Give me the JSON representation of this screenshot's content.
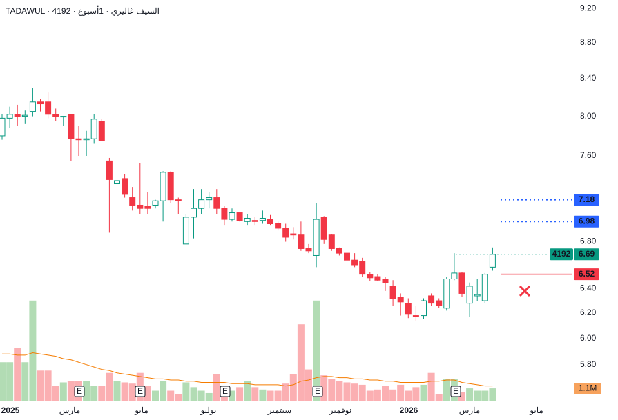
{
  "chart_data": {
    "type": "candlestick",
    "title": "TADAWUL · 4192 · السيف غاليري · 1أسبوع",
    "symbol": "4192",
    "x_labels": [
      "2025",
      "مارس",
      "مايو",
      "يوليو",
      "سبتمبر",
      "نوفمبر",
      "2026",
      "مارس",
      "مايو"
    ],
    "open": [
      7.8,
      7.98,
      8.02,
      8.0,
      8.05,
      8.15,
      8.15,
      8.02,
      8.0,
      8.02,
      7.77,
      7.76,
      7.77,
      7.95,
      7.55,
      7.33,
      7.38,
      7.2,
      7.13,
      7.12,
      7.13,
      7.17,
      7.44,
      7.18,
      6.78,
      7.02,
      7.1,
      7.18,
      7.2,
      7.1,
      7.0,
      7.06,
      6.98,
      6.99,
      6.99,
      7.0,
      6.96,
      6.92,
      6.87,
      6.86,
      6.74,
      6.68,
      7.02,
      6.86,
      6.74,
      6.7,
      6.64,
      6.63,
      6.52,
      6.5,
      6.48,
      6.42,
      6.33,
      6.28,
      6.18,
      6.18,
      6.34,
      6.3,
      6.24,
      6.48,
      6.53,
      6.28,
      6.34,
      6.3,
      6.58
    ],
    "high": [
      8.02,
      8.1,
      8.12,
      8.06,
      8.3,
      8.18,
      8.25,
      8.08,
      8.0,
      8.02,
      7.9,
      7.85,
      8.02,
      7.97,
      7.58,
      7.5,
      7.42,
      7.3,
      7.53,
      7.25,
      7.18,
      7.45,
      7.45,
      7.2,
      7.05,
      7.28,
      7.28,
      7.25,
      7.28,
      7.12,
      7.1,
      7.06,
      7.05,
      7.02,
      7.08,
      7.04,
      6.98,
      6.96,
      6.93,
      6.98,
      6.78,
      7.15,
      7.03,
      6.87,
      6.75,
      6.72,
      6.7,
      6.66,
      6.54,
      6.52,
      6.5,
      6.47,
      6.36,
      6.32,
      6.26,
      6.32,
      6.36,
      6.32,
      6.5,
      6.7,
      6.54,
      6.45,
      6.48,
      6.53,
      6.75
    ],
    "low": [
      7.76,
      7.88,
      7.9,
      7.92,
      8.0,
      8.05,
      7.98,
      7.95,
      7.9,
      7.55,
      7.6,
      7.6,
      7.72,
      7.75,
      6.88,
      7.3,
      7.2,
      7.08,
      7.05,
      7.05,
      7.1,
      6.98,
      7.15,
      7.05,
      6.78,
      6.83,
      7.05,
      7.1,
      7.05,
      6.95,
      6.98,
      6.98,
      6.95,
      6.95,
      6.96,
      6.95,
      6.9,
      6.8,
      6.82,
      6.72,
      6.7,
      6.58,
      6.78,
      6.72,
      6.68,
      6.6,
      6.58,
      6.5,
      6.46,
      6.46,
      6.38,
      6.26,
      6.18,
      6.16,
      6.14,
      6.15,
      6.26,
      6.24,
      6.22,
      6.47,
      6.33,
      6.17,
      6.3,
      6.28,
      6.55
    ],
    "close": [
      7.98,
      8.02,
      8.0,
      8.01,
      8.15,
      8.13,
      8.02,
      8.0,
      8.0,
      7.77,
      7.76,
      7.77,
      7.97,
      7.75,
      7.37,
      7.36,
      7.23,
      7.13,
      7.1,
      7.1,
      7.17,
      7.44,
      7.18,
      7.17,
      7.02,
      7.1,
      7.18,
      7.2,
      7.1,
      7.0,
      7.06,
      6.99,
      7.01,
      6.98,
      7.01,
      6.96,
      6.92,
      6.84,
      6.86,
      6.74,
      6.72,
      7.0,
      6.82,
      6.74,
      6.7,
      6.64,
      6.6,
      6.52,
      6.49,
      6.47,
      6.45,
      6.32,
      6.29,
      6.19,
      6.17,
      6.3,
      6.28,
      6.26,
      6.48,
      6.53,
      6.36,
      6.42,
      6.35,
      6.52,
      6.69
    ],
    "volume": [
      3.3,
      3.3,
      4.5,
      3.3,
      8.5,
      2.6,
      2.6,
      1.3,
      1.6,
      1.7,
      1.7,
      1.7,
      1.3,
      1.3,
      2.4,
      1.7,
      1.6,
      1.5,
      2.4,
      1.3,
      0.9,
      1.7,
      0.9,
      0.6,
      1.6,
      1.2,
      0.9,
      0.7,
      2.3,
      1.2,
      0.9,
      1.2,
      1.7,
      1.2,
      1.0,
      0.9,
      0.9,
      1.5,
      2.3,
      6.5,
      2.7,
      8.5,
      2.2,
      1.9,
      1.7,
      1.6,
      1.5,
      1.4,
      0.9,
      1.0,
      1.3,
      1.0,
      1.4,
      0.9,
      1.2,
      1.4,
      2.4,
      0.6,
      1.9,
      1.9,
      0.8,
      1.1,
      0.9,
      0.9,
      1.1
    ],
    "volume_ma": [
      4.0,
      4.0,
      3.9,
      3.9,
      4.1,
      4.0,
      3.9,
      3.8,
      3.6,
      3.5,
      3.3,
      3.1,
      2.9,
      2.7,
      2.6,
      2.4,
      2.3,
      2.2,
      2.1,
      2.0,
      1.9,
      1.9,
      1.8,
      1.8,
      1.7,
      1.7,
      1.6,
      1.6,
      1.6,
      1.6,
      1.5,
      1.5,
      1.5,
      1.4,
      1.4,
      1.4,
      1.4,
      1.3,
      1.4,
      1.7,
      1.8,
      2.0,
      2.1,
      2.1,
      2.0,
      2.0,
      1.9,
      1.9,
      1.8,
      1.8,
      1.7,
      1.7,
      1.6,
      1.6,
      1.6,
      1.6,
      1.7,
      1.7,
      1.8,
      1.8,
      1.6,
      1.5,
      1.4,
      1.3,
      1.3
    ],
    "last_volume_label": "1.1M",
    "events": [
      "E",
      "E",
      "E",
      "E",
      "E"
    ],
    "ylim": [
      5.53,
      9.3
    ],
    "log_scale": true,
    "yticks": [
      {
        "value": 9.2,
        "label": "9.20"
      },
      {
        "value": 8.8,
        "label": "8.80"
      },
      {
        "value": 8.4,
        "label": "8.40"
      },
      {
        "value": 8.0,
        "label": "8.00"
      },
      {
        "value": 7.6,
        "label": "7.60"
      },
      {
        "value": 6.8,
        "label": "6.80"
      },
      {
        "value": 6.4,
        "label": "6.40"
      },
      {
        "value": 6.2,
        "label": "6.20"
      },
      {
        "value": 6.0,
        "label": "6.00"
      },
      {
        "value": 5.8,
        "label": "5.80"
      }
    ],
    "levels": [
      {
        "value": 7.18,
        "color": "#2962ff"
      },
      {
        "value": 6.98,
        "color": "#2962ff"
      },
      {
        "value": 6.52,
        "color": "#f23645"
      }
    ],
    "up_color": "#089981",
    "down_color": "#f23645"
  }
}
